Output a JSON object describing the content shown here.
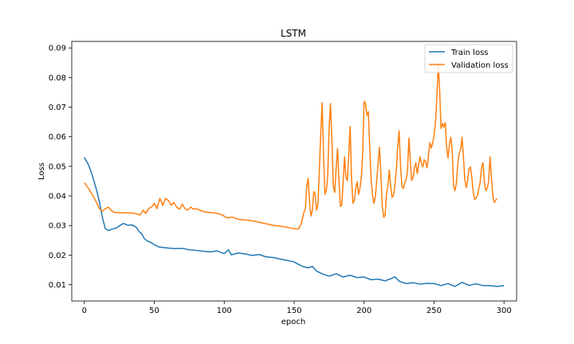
{
  "chart_data": {
    "type": "line",
    "title": "LSTM",
    "xlabel": "epoch",
    "ylabel": "Loss",
    "xlim": [
      -9,
      309
    ],
    "ylim": [
      0.0045,
      0.0922
    ],
    "xticks": [
      0,
      50,
      100,
      150,
      200,
      250,
      300
    ],
    "yticks": [
      0.01,
      0.02,
      0.03,
      0.04,
      0.05,
      0.06,
      0.07,
      0.08,
      0.09
    ],
    "ytick_labels": [
      "0.01",
      "0.02",
      "0.03",
      "0.04",
      "0.05",
      "0.06",
      "0.07",
      "0.08",
      "0.09"
    ],
    "grid": false,
    "legend_position": "upper right",
    "series": [
      {
        "name": "Train loss",
        "color": "#1f77b4",
        "points": [
          [
            0,
            0.053
          ],
          [
            3,
            0.0505
          ],
          [
            6,
            0.0465
          ],
          [
            9,
            0.0415
          ],
          [
            11,
            0.0375
          ],
          [
            13,
            0.0325
          ],
          [
            15,
            0.029
          ],
          [
            17,
            0.0283
          ],
          [
            20,
            0.0288
          ],
          [
            23,
            0.0292
          ],
          [
            26,
            0.0302
          ],
          [
            28,
            0.0307
          ],
          [
            31,
            0.0301
          ],
          [
            34,
            0.0302
          ],
          [
            37,
            0.0295
          ],
          [
            39,
            0.028
          ],
          [
            41,
            0.0272
          ],
          [
            43,
            0.0255
          ],
          [
            45,
            0.0248
          ],
          [
            48,
            0.0242
          ],
          [
            50,
            0.0235
          ],
          [
            53,
            0.0228
          ],
          [
            56,
            0.0226
          ],
          [
            60,
            0.0224
          ],
          [
            65,
            0.0222
          ],
          [
            70,
            0.0223
          ],
          [
            75,
            0.0218
          ],
          [
            80,
            0.0216
          ],
          [
            85,
            0.0213
          ],
          [
            90,
            0.0211
          ],
          [
            95,
            0.0214
          ],
          [
            100,
            0.0205
          ],
          [
            103,
            0.0218
          ],
          [
            105,
            0.0201
          ],
          [
            110,
            0.0207
          ],
          [
            115,
            0.0204
          ],
          [
            120,
            0.0199
          ],
          [
            125,
            0.0202
          ],
          [
            130,
            0.0194
          ],
          [
            135,
            0.0192
          ],
          [
            140,
            0.0187
          ],
          [
            145,
            0.0182
          ],
          [
            150,
            0.0177
          ],
          [
            153,
            0.0169
          ],
          [
            156,
            0.0162
          ],
          [
            160,
            0.0157
          ],
          [
            163,
            0.0162
          ],
          [
            166,
            0.0146
          ],
          [
            170,
            0.0137
          ],
          [
            175,
            0.0129
          ],
          [
            180,
            0.0137
          ],
          [
            185,
            0.0126
          ],
          [
            190,
            0.0132
          ],
          [
            195,
            0.0124
          ],
          [
            200,
            0.0126
          ],
          [
            205,
            0.0117
          ],
          [
            210,
            0.0119
          ],
          [
            215,
            0.0113
          ],
          [
            220,
            0.0122
          ],
          [
            222,
            0.0127
          ],
          [
            225,
            0.0112
          ],
          [
            230,
            0.0104
          ],
          [
            235,
            0.0107
          ],
          [
            240,
            0.0102
          ],
          [
            245,
            0.0105
          ],
          [
            250,
            0.0104
          ],
          [
            255,
            0.0097
          ],
          [
            260,
            0.0104
          ],
          [
            265,
            0.0094
          ],
          [
            270,
            0.0108
          ],
          [
            275,
            0.0098
          ],
          [
            280,
            0.0103
          ],
          [
            285,
            0.0097
          ],
          [
            290,
            0.0097
          ],
          [
            295,
            0.0094
          ],
          [
            300,
            0.0097
          ]
        ]
      },
      {
        "name": "Validation loss",
        "color": "#ff7f0e",
        "points": [
          [
            0,
            0.0445
          ],
          [
            3,
            0.0425
          ],
          [
            6,
            0.0402
          ],
          [
            9,
            0.0375
          ],
          [
            11,
            0.0355
          ],
          [
            13,
            0.0349
          ],
          [
            15,
            0.0357
          ],
          [
            17,
            0.0362
          ],
          [
            19,
            0.0352
          ],
          [
            21,
            0.0345
          ],
          [
            25,
            0.0343
          ],
          [
            30,
            0.0343
          ],
          [
            35,
            0.0342
          ],
          [
            38,
            0.0338
          ],
          [
            40,
            0.0336
          ],
          [
            42,
            0.0352
          ],
          [
            44,
            0.0341
          ],
          [
            46,
            0.0358
          ],
          [
            48,
            0.0362
          ],
          [
            50,
            0.0375
          ],
          [
            52,
            0.0357
          ],
          [
            54,
            0.0392
          ],
          [
            56,
            0.0368
          ],
          [
            58,
            0.0392
          ],
          [
            60,
            0.0385
          ],
          [
            62,
            0.0369
          ],
          [
            64,
            0.0378
          ],
          [
            66,
            0.0362
          ],
          [
            68,
            0.0355
          ],
          [
            70,
            0.0372
          ],
          [
            72,
            0.0357
          ],
          [
            74,
            0.0352
          ],
          [
            76,
            0.0362
          ],
          [
            78,
            0.0355
          ],
          [
            80,
            0.0357
          ],
          [
            83,
            0.0351
          ],
          [
            86,
            0.0346
          ],
          [
            90,
            0.0344
          ],
          [
            94,
            0.0342
          ],
          [
            98,
            0.0337
          ],
          [
            102,
            0.0326
          ],
          [
            106,
            0.0328
          ],
          [
            110,
            0.0321
          ],
          [
            115,
            0.0319
          ],
          [
            120,
            0.0316
          ],
          [
            125,
            0.0311
          ],
          [
            130,
            0.0306
          ],
          [
            135,
            0.0301
          ],
          [
            140,
            0.0298
          ],
          [
            145,
            0.0294
          ],
          [
            150,
            0.0289
          ],
          [
            153,
            0.0288
          ],
          [
            155,
            0.0305
          ],
          [
            157,
            0.0345
          ],
          [
            158,
            0.0355
          ],
          [
            159,
            0.0432
          ],
          [
            160,
            0.046
          ],
          [
            161,
            0.038
          ],
          [
            162,
            0.0332
          ],
          [
            163,
            0.035
          ],
          [
            164,
            0.0415
          ],
          [
            165,
            0.0405
          ],
          [
            166,
            0.0352
          ],
          [
            167,
            0.0372
          ],
          [
            168,
            0.0485
          ],
          [
            169,
            0.0612
          ],
          [
            170,
            0.0715
          ],
          [
            171,
            0.054
          ],
          [
            172,
            0.0405
          ],
          [
            173,
            0.0418
          ],
          [
            174,
            0.0468
          ],
          [
            175,
            0.0635
          ],
          [
            176,
            0.0712
          ],
          [
            177,
            0.058
          ],
          [
            178,
            0.0432
          ],
          [
            179,
            0.0412
          ],
          [
            180,
            0.0492
          ],
          [
            181,
            0.056
          ],
          [
            182,
            0.0458
          ],
          [
            183,
            0.0365
          ],
          [
            184,
            0.0368
          ],
          [
            185,
            0.0445
          ],
          [
            186,
            0.0532
          ],
          [
            187,
            0.0462
          ],
          [
            188,
            0.0452
          ],
          [
            189,
            0.0535
          ],
          [
            190,
            0.0635
          ],
          [
            191,
            0.0462
          ],
          [
            192,
            0.0375
          ],
          [
            193,
            0.0385
          ],
          [
            194,
            0.0425
          ],
          [
            195,
            0.0448
          ],
          [
            196,
            0.0405
          ],
          [
            197,
            0.0425
          ],
          [
            198,
            0.0465
          ],
          [
            199,
            0.0545
          ],
          [
            200,
            0.072
          ],
          [
            201,
            0.0712
          ],
          [
            202,
            0.0672
          ],
          [
            203,
            0.0685
          ],
          [
            204,
            0.0565
          ],
          [
            205,
            0.0455
          ],
          [
            206,
            0.0405
          ],
          [
            207,
            0.0375
          ],
          [
            208,
            0.0395
          ],
          [
            209,
            0.0452
          ],
          [
            210,
            0.051
          ],
          [
            211,
            0.0565
          ],
          [
            212,
            0.0472
          ],
          [
            213,
            0.0365
          ],
          [
            214,
            0.0328
          ],
          [
            215,
            0.0335
          ],
          [
            216,
            0.0408
          ],
          [
            217,
            0.0432
          ],
          [
            218,
            0.0488
          ],
          [
            219,
            0.0432
          ],
          [
            220,
            0.0395
          ],
          [
            221,
            0.0402
          ],
          [
            222,
            0.0435
          ],
          [
            223,
            0.0485
          ],
          [
            224,
            0.0565
          ],
          [
            225,
            0.062
          ],
          [
            226,
            0.0508
          ],
          [
            227,
            0.0432
          ],
          [
            228,
            0.0425
          ],
          [
            229,
            0.0442
          ],
          [
            230,
            0.0455
          ],
          [
            231,
            0.0482
          ],
          [
            232,
            0.0595
          ],
          [
            233,
            0.0522
          ],
          [
            234,
            0.0452
          ],
          [
            235,
            0.0462
          ],
          [
            236,
            0.0495
          ],
          [
            237,
            0.0512
          ],
          [
            238,
            0.0475
          ],
          [
            239,
            0.0505
          ],
          [
            240,
            0.0532
          ],
          [
            241,
            0.051
          ],
          [
            242,
            0.0498
          ],
          [
            243,
            0.0522
          ],
          [
            244,
            0.0515
          ],
          [
            245,
            0.0495
          ],
          [
            246,
            0.0535
          ],
          [
            247,
            0.058
          ],
          [
            248,
            0.0562
          ],
          [
            249,
            0.0578
          ],
          [
            250,
            0.0605
          ],
          [
            251,
            0.0645
          ],
          [
            252,
            0.0735
          ],
          [
            253,
            0.0845
          ],
          [
            254,
            0.0758
          ],
          [
            255,
            0.0628
          ],
          [
            256,
            0.0645
          ],
          [
            257,
            0.0632
          ],
          [
            258,
            0.0648
          ],
          [
            259,
            0.0565
          ],
          [
            260,
            0.0528
          ],
          [
            261,
            0.0575
          ],
          [
            262,
            0.0598
          ],
          [
            263,
            0.0548
          ],
          [
            264,
            0.0432
          ],
          [
            265,
            0.0418
          ],
          [
            266,
            0.0445
          ],
          [
            267,
            0.0512
          ],
          [
            268,
            0.0545
          ],
          [
            269,
            0.0555
          ],
          [
            270,
            0.0598
          ],
          [
            271,
            0.0532
          ],
          [
            272,
            0.0455
          ],
          [
            273,
            0.0428
          ],
          [
            274,
            0.0452
          ],
          [
            275,
            0.0492
          ],
          [
            276,
            0.0498
          ],
          [
            277,
            0.0462
          ],
          [
            278,
            0.0412
          ],
          [
            279,
            0.0388
          ],
          [
            280,
            0.0392
          ],
          [
            281,
            0.0402
          ],
          [
            282,
            0.0425
          ],
          [
            283,
            0.0448
          ],
          [
            284,
            0.0498
          ],
          [
            285,
            0.0512
          ],
          [
            286,
            0.0445
          ],
          [
            287,
            0.0418
          ],
          [
            288,
            0.0425
          ],
          [
            289,
            0.0448
          ],
          [
            290,
            0.0532
          ],
          [
            291,
            0.0462
          ],
          [
            292,
            0.0402
          ],
          [
            293,
            0.0378
          ],
          [
            294,
            0.0385
          ],
          [
            295,
            0.0392
          ]
        ]
      }
    ]
  }
}
